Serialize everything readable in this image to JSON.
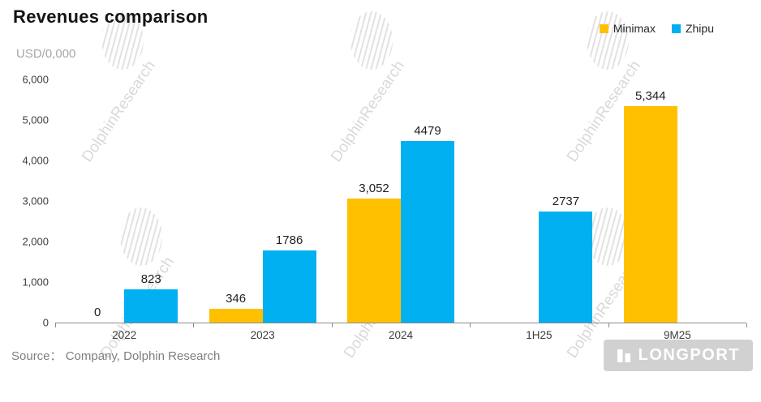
{
  "title": "Revenues comparison",
  "subtitle": "USD/0,000",
  "source": "Source： Company, Dolphin Research",
  "watermark_text": "DolphinResearch",
  "logo_text": "LONGPORT",
  "chart_data": {
    "type": "bar",
    "categories": [
      "2022",
      "2023",
      "2024",
      "1H25",
      "9M25"
    ],
    "series": [
      {
        "name": "Minimax",
        "color": "#FFC000",
        "values": [
          0,
          346,
          3052,
          null,
          5344
        ],
        "labels": [
          "0",
          "346",
          "3,052",
          null,
          "5,344"
        ]
      },
      {
        "name": "Zhipu",
        "color": "#00B0F0",
        "values": [
          823,
          1786,
          4479,
          2737,
          null
        ],
        "labels": [
          "823",
          "1786",
          "4479",
          "2737",
          null
        ]
      }
    ],
    "ylim": [
      0,
      6000
    ],
    "yticks": [
      "6,000",
      "5,000",
      "4,000",
      "3,000",
      "2,000",
      "1,000",
      "0"
    ],
    "grid": false,
    "legend_position": "top-right"
  }
}
